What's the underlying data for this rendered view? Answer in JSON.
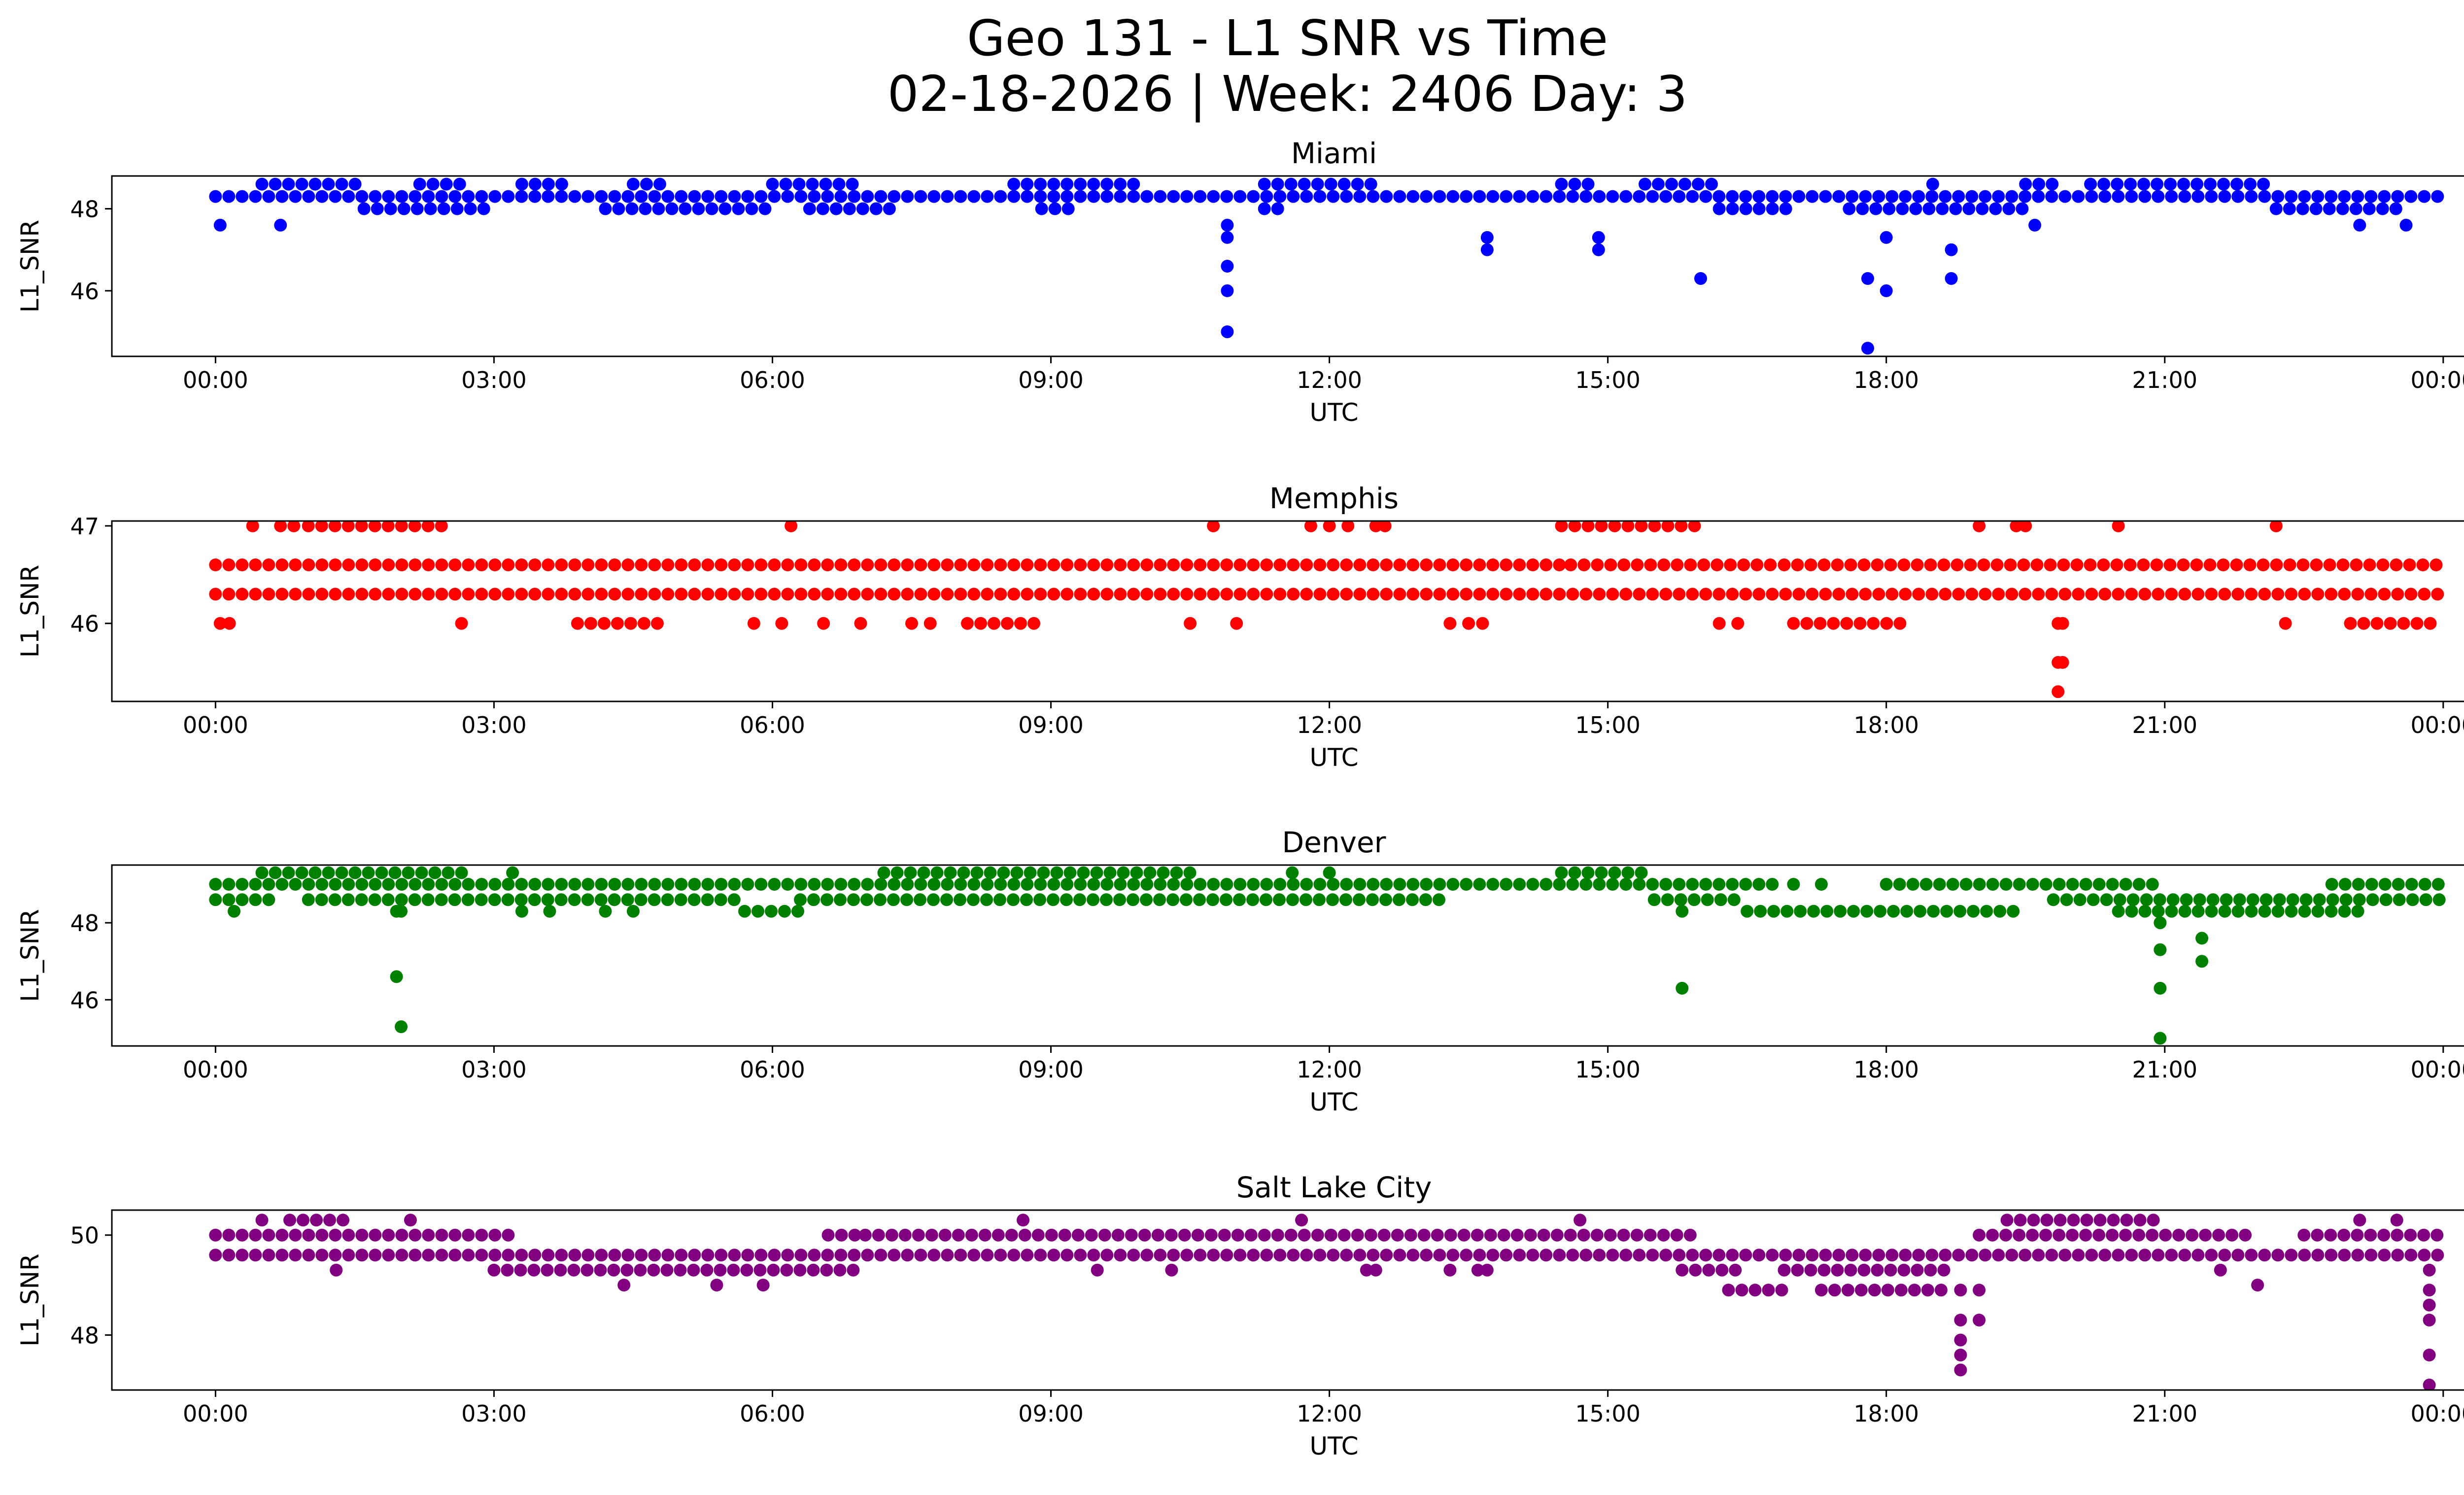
{
  "figure": {
    "title_line1": "Geo 131 - L1 SNR vs Time",
    "title_line2": "02-18-2026 | Week: 2406 Day: 3"
  },
  "chart_data": [
    {
      "type": "scatter",
      "title": "Miami",
      "xlabel": "UTC",
      "ylabel": "L1_SNR",
      "color": "#0000ff",
      "xticks": [
        "00:00",
        "03:00",
        "06:00",
        "09:00",
        "12:00",
        "15:00",
        "18:00",
        "21:00",
        "00:00"
      ],
      "xlim_hours": [
        -1.1167,
        25.2167
      ],
      "ylim": [
        44.4,
        48.8
      ],
      "yticks": [
        46,
        48
      ],
      "levels": [
        48.0,
        48.3,
        48.6
      ],
      "main_level": 48.3,
      "bands": [
        {
          "level": 48.6,
          "ranges": [
            [
              0.5,
              1.6
            ],
            [
              2.2,
              2.7
            ],
            [
              3.3,
              3.8
            ],
            [
              4.5,
              4.9
            ],
            [
              6.0,
              6.9
            ],
            [
              8.6,
              9.9
            ],
            [
              11.3,
              12.5
            ],
            [
              14.5,
              14.9
            ],
            [
              15.4,
              16.2
            ],
            [
              18.5,
              18.6
            ],
            [
              19.5,
              19.8
            ],
            [
              20.2,
              22.2
            ]
          ]
        },
        {
          "level": 48.0,
          "ranges": [
            [
              1.6,
              3.0
            ],
            [
              4.2,
              6.0
            ],
            [
              6.4,
              7.4
            ],
            [
              8.9,
              9.3
            ],
            [
              11.3,
              11.5
            ],
            [
              16.2,
              17.0
            ],
            [
              17.6,
              19.5
            ],
            [
              22.2,
              23.5
            ]
          ]
        },
        {
          "level": 48.3,
          "ranges": [
            [
              0.0,
              24.0
            ]
          ]
        }
      ],
      "points": [
        [
          0.05,
          47.6
        ],
        [
          0.7,
          47.6
        ],
        [
          10.9,
          47.6
        ],
        [
          10.9,
          47.3
        ],
        [
          10.9,
          46.6
        ],
        [
          10.9,
          46.0
        ],
        [
          10.9,
          45.0
        ],
        [
          13.7,
          47.3
        ],
        [
          13.7,
          47.0
        ],
        [
          14.9,
          47.3
        ],
        [
          14.9,
          47.0
        ],
        [
          16.0,
          46.3
        ],
        [
          17.8,
          44.6
        ],
        [
          17.8,
          46.3
        ],
        [
          18.0,
          46.0
        ],
        [
          18.0,
          47.3
        ],
        [
          18.7,
          47.0
        ],
        [
          18.7,
          46.3
        ],
        [
          19.6,
          47.6
        ],
        [
          23.1,
          47.6
        ],
        [
          23.6,
          47.6
        ]
      ]
    },
    {
      "type": "scatter",
      "title": "Memphis",
      "xlabel": "UTC",
      "ylabel": "L1_SNR",
      "color": "#ff0000",
      "xticks": [
        "00:00",
        "03:00",
        "06:00",
        "09:00",
        "12:00",
        "15:00",
        "18:00",
        "21:00",
        "00:00"
      ],
      "xlim_hours": [
        -1.1167,
        25.2167
      ],
      "ylim": [
        45.2,
        47.05
      ],
      "yticks": [
        46,
        47
      ],
      "levels": [
        46.0,
        46.3,
        46.6,
        47.0
      ],
      "main_level": 46.3,
      "bands": [
        {
          "level": 47.0,
          "ranges": [
            [
              0.4,
              0.5
            ],
            [
              0.7,
              0.95
            ],
            [
              1.0,
              2.5
            ],
            [
              14.5,
              16.0
            ]
          ]
        },
        {
          "level": 46.6,
          "ranges": [
            [
              0.0,
              14.5
            ],
            [
              14.6,
              16.8
            ],
            [
              16.9,
              24.0
            ]
          ]
        },
        {
          "level": 46.0,
          "ranges": [
            [
              3.9,
              4.8
            ],
            [
              8.1,
              8.9
            ],
            [
              17.0,
              18.2
            ],
            [
              23.0,
              24.0
            ]
          ]
        },
        {
          "level": 46.3,
          "ranges": [
            [
              0.0,
              24.0
            ]
          ]
        }
      ],
      "points": [
        [
          0.05,
          46.0
        ],
        [
          0.15,
          46.0
        ],
        [
          2.65,
          46.0
        ],
        [
          5.8,
          46.0
        ],
        [
          6.1,
          46.0
        ],
        [
          6.55,
          46.0
        ],
        [
          6.95,
          46.0
        ],
        [
          7.5,
          46.0
        ],
        [
          7.7,
          46.0
        ],
        [
          10.5,
          46.0
        ],
        [
          11.0,
          46.0
        ],
        [
          13.3,
          46.0
        ],
        [
          13.5,
          46.0
        ],
        [
          13.65,
          46.0
        ],
        [
          16.2,
          46.0
        ],
        [
          16.4,
          46.0
        ],
        [
          6.2,
          47.0
        ],
        [
          10.75,
          47.0
        ],
        [
          11.8,
          47.0
        ],
        [
          12.0,
          47.0
        ],
        [
          12.2,
          47.0
        ],
        [
          12.5,
          47.0
        ],
        [
          12.6,
          47.0
        ],
        [
          19.0,
          47.0
        ],
        [
          19.4,
          47.0
        ],
        [
          19.5,
          47.0
        ],
        [
          20.5,
          47.0
        ],
        [
          22.2,
          47.0
        ],
        [
          19.85,
          46.0
        ],
        [
          19.9,
          46.0
        ],
        [
          19.85,
          45.6
        ],
        [
          19.9,
          45.6
        ],
        [
          19.85,
          45.3
        ],
        [
          22.3,
          46.0
        ]
      ]
    },
    {
      "type": "scatter",
      "title": "Denver",
      "xlabel": "UTC",
      "ylabel": "L1_SNR",
      "color": "#008000",
      "xticks": [
        "00:00",
        "03:00",
        "06:00",
        "09:00",
        "12:00",
        "15:00",
        "18:00",
        "21:00",
        "00:00"
      ],
      "xlim_hours": [
        -1.1167,
        25.2167
      ],
      "ylim": [
        44.8,
        49.5
      ],
      "yticks": [
        46,
        48
      ],
      "levels": [
        48.3,
        48.6,
        49.0,
        49.3
      ],
      "main_level": 49.0,
      "bands": [
        {
          "level": 49.3,
          "ranges": [
            [
              0.5,
              2.7
            ],
            [
              7.2,
              10.5
            ],
            [
              14.5,
              15.5
            ]
          ]
        },
        {
          "level": 48.6,
          "ranges": [
            [
              0.0,
              0.7
            ],
            [
              1.0,
              5.7
            ],
            [
              6.3,
              13.3
            ],
            [
              15.5,
              16.5
            ],
            [
              19.8,
              24.0
            ]
          ]
        },
        {
          "level": 48.3,
          "ranges": [
            [
              5.7,
              6.3
            ],
            [
              16.5,
              19.5
            ],
            [
              20.5,
              23.2
            ]
          ]
        },
        {
          "level": 49.0,
          "ranges": [
            [
              0.0,
              16.8
            ],
            [
              18.0,
              21.0
            ],
            [
              22.8,
              24.0
            ]
          ]
        }
      ],
      "points": [
        [
          0.2,
          48.3
        ],
        [
          3.3,
          48.3
        ],
        [
          3.6,
          48.3
        ],
        [
          4.2,
          48.3
        ],
        [
          4.5,
          48.3
        ],
        [
          1.95,
          48.3
        ],
        [
          2.0,
          48.3
        ],
        [
          1.95,
          46.6
        ],
        [
          2.0,
          45.3
        ],
        [
          15.8,
          48.3
        ],
        [
          15.8,
          46.3
        ],
        [
          20.95,
          48.0
        ],
        [
          20.95,
          47.3
        ],
        [
          20.95,
          46.3
        ],
        [
          20.95,
          45.0
        ],
        [
          21.4,
          47.6
        ],
        [
          21.4,
          47.0
        ],
        [
          3.2,
          49.3
        ],
        [
          11.6,
          49.3
        ],
        [
          12.0,
          49.3
        ],
        [
          17.0,
          49.0
        ],
        [
          17.3,
          49.0
        ]
      ]
    },
    {
      "type": "scatter",
      "title": "Salt Lake City",
      "xlabel": "UTC",
      "ylabel": "L1_SNR",
      "color": "#800080",
      "xticks": [
        "00:00",
        "03:00",
        "06:00",
        "09:00",
        "12:00",
        "15:00",
        "18:00",
        "21:00",
        "00:00"
      ],
      "xlim_hours": [
        -1.1167,
        25.2167
      ],
      "ylim": [
        46.9,
        50.5
      ],
      "yticks": [
        48,
        50
      ],
      "levels": [
        48.9,
        49.3,
        49.6,
        50.0,
        50.3
      ],
      "main_level": 49.6,
      "bands": [
        {
          "level": 50.0,
          "ranges": [
            [
              0.0,
              3.2
            ],
            [
              6.6,
              6.9
            ],
            [
              7.0,
              16.0
            ],
            [
              19.0,
              22.0
            ],
            [
              22.5,
              24.0
            ]
          ]
        },
        {
          "level": 49.3,
          "ranges": [
            [
              3.0,
              7.0
            ],
            [
              15.8,
              16.5
            ],
            [
              16.9,
              18.7
            ]
          ]
        },
        {
          "level": 48.9,
          "ranges": [
            [
              16.3,
              17.0
            ],
            [
              17.3,
              18.6
            ]
          ]
        },
        {
          "level": 50.3,
          "ranges": [
            [
              0.8,
              1.5
            ],
            [
              19.3,
              20.9
            ]
          ]
        },
        {
          "level": 49.6,
          "ranges": [
            [
              0.0,
              24.0
            ]
          ]
        }
      ],
      "points": [
        [
          1.3,
          49.3
        ],
        [
          4.4,
          49.0
        ],
        [
          5.4,
          49.0
        ],
        [
          5.9,
          49.0
        ],
        [
          9.5,
          49.3
        ],
        [
          10.3,
          49.3
        ],
        [
          12.4,
          49.3
        ],
        [
          12.5,
          49.3
        ],
        [
          13.3,
          49.3
        ],
        [
          13.6,
          49.3
        ],
        [
          13.7,
          49.3
        ],
        [
          22.0,
          49.0
        ],
        [
          21.6,
          49.3
        ],
        [
          0.5,
          50.3
        ],
        [
          2.1,
          50.3
        ],
        [
          8.7,
          50.3
        ],
        [
          11.7,
          50.3
        ],
        [
          14.7,
          50.3
        ],
        [
          23.1,
          50.3
        ],
        [
          23.5,
          50.3
        ],
        [
          18.8,
          48.9
        ],
        [
          18.8,
          48.3
        ],
        [
          18.8,
          47.9
        ],
        [
          18.8,
          47.6
        ],
        [
          18.8,
          47.3
        ],
        [
          19.0,
          48.3
        ],
        [
          19.0,
          48.9
        ],
        [
          23.85,
          49.3
        ],
        [
          23.85,
          48.9
        ],
        [
          23.85,
          48.6
        ],
        [
          23.85,
          48.3
        ],
        [
          23.85,
          47.6
        ],
        [
          23.85,
          47.0
        ]
      ]
    }
  ]
}
